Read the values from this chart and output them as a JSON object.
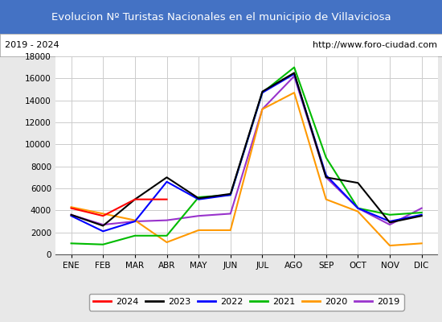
{
  "title": "Evolucion Nº Turistas Nacionales en el municipio de Villaviciosa",
  "subtitle_left": "2019 - 2024",
  "subtitle_right": "http://www.foro-ciudad.com",
  "title_bg_color": "#4472c4",
  "title_text_color": "#ffffff",
  "months": [
    "ENE",
    "FEB",
    "MAR",
    "ABR",
    "MAY",
    "JUN",
    "JUL",
    "AGO",
    "SEP",
    "OCT",
    "NOV",
    "DIC"
  ],
  "series": {
    "2024": {
      "color": "#ff0000",
      "data": [
        4200,
        3500,
        5000,
        5000,
        null,
        null,
        null,
        null,
        null,
        null,
        null,
        null
      ]
    },
    "2023": {
      "color": "#000000",
      "data": [
        3600,
        2600,
        5000,
        7000,
        5100,
        5500,
        14800,
        16500,
        7000,
        6500,
        2900,
        3500
      ]
    },
    "2022": {
      "color": "#0000ff",
      "data": [
        3500,
        2100,
        3000,
        6600,
        5000,
        5400,
        14700,
        16400,
        7200,
        4200,
        3000,
        3600
      ]
    },
    "2021": {
      "color": "#00bb00",
      "data": [
        1000,
        900,
        1700,
        1700,
        5200,
        5400,
        14700,
        17000,
        8800,
        4200,
        3600,
        3800
      ]
    },
    "2020": {
      "color": "#ff9900",
      "data": [
        4300,
        3700,
        3100,
        1100,
        2200,
        2200,
        13200,
        14700,
        5000,
        3900,
        800,
        1000
      ]
    },
    "2019": {
      "color": "#9933cc",
      "data": [
        3600,
        2700,
        3000,
        3100,
        3500,
        3700,
        13200,
        16200,
        7000,
        4200,
        2700,
        4200
      ]
    }
  },
  "ylim": [
    0,
    18000
  ],
  "yticks": [
    0,
    2000,
    4000,
    6000,
    8000,
    10000,
    12000,
    14000,
    16000,
    18000
  ],
  "background_color": "#e8e8e8",
  "plot_bg_color": "#ffffff",
  "grid_color": "#cccccc",
  "legend_order": [
    "2024",
    "2023",
    "2022",
    "2021",
    "2020",
    "2019"
  ]
}
